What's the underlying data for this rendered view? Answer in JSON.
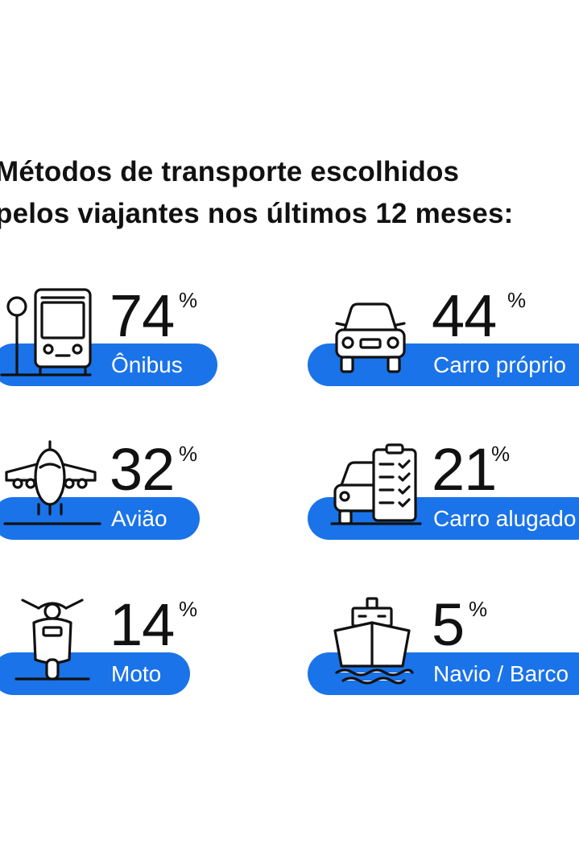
{
  "title": {
    "line1": "Métodos de transporte escolhidos",
    "line2": "pelos viajantes nos últimos 12 meses:"
  },
  "colors": {
    "accent": "#1a73e8",
    "text": "#111111",
    "background": "#ffffff"
  },
  "items": [
    {
      "icon": "bus-icon",
      "percent": "74",
      "symbol": "%",
      "label": "Ônibus"
    },
    {
      "icon": "car-icon",
      "percent": "44",
      "symbol": "%",
      "label": "Carro próprio"
    },
    {
      "icon": "airplane-icon",
      "percent": "32",
      "symbol": "%",
      "label": "Avião"
    },
    {
      "icon": "rental-car-icon",
      "percent": "21",
      "symbol": "%",
      "label": "Carro alugado"
    },
    {
      "icon": "scooter-icon",
      "percent": "14",
      "symbol": "%",
      "label": "Moto"
    },
    {
      "icon": "ship-icon",
      "percent": "5",
      "symbol": "%",
      "label": "Navio / Barco"
    }
  ]
}
